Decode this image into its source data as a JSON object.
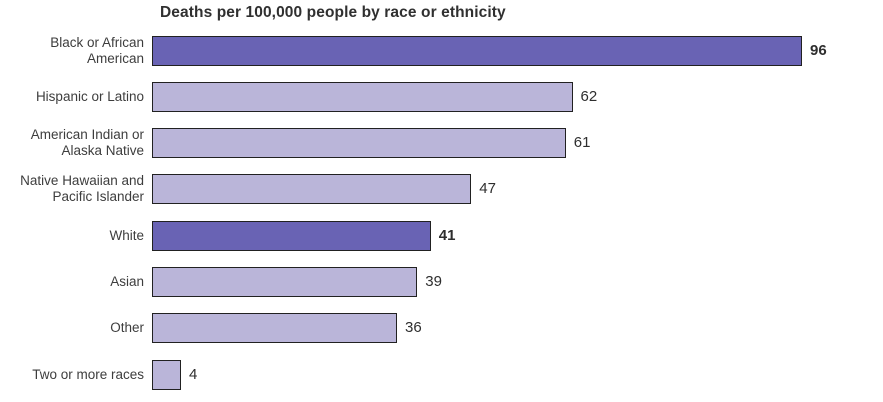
{
  "title": "Deaths per 100,000 people by race or ethnicity",
  "colors": {
    "bar_highlight": "#6963B4",
    "bar_default": "#BAB5D9",
    "bar_border": "#212121",
    "title_text": "#303030",
    "label_text": "#3d3d3d",
    "value_text": "#2e2e2e"
  },
  "chart_data": {
    "type": "bar",
    "orientation": "horizontal",
    "title": "Deaths per 100,000 people by race or ethnicity",
    "xlabel": "",
    "ylabel": "",
    "xlim": [
      0,
      100
    ],
    "grid": false,
    "axis_lines": false,
    "value_labels": "end-of-bar",
    "legend": "none",
    "categories": [
      "Black or African American",
      "Hispanic or Latino",
      "American Indian or Alaska Native",
      "Native Hawaiian and Pacific Islander",
      "White",
      "Asian",
      "Other",
      "Two or more races"
    ],
    "values": [
      96,
      62,
      61,
      47,
      41,
      39,
      36,
      4
    ],
    "rows": [
      {
        "label": "Black or African\nAmerican",
        "value": "96",
        "highlight": true
      },
      {
        "label": "Hispanic or Latino",
        "value": "62",
        "highlight": false
      },
      {
        "label": "American Indian or\nAlaska Native",
        "value": "61",
        "highlight": false
      },
      {
        "label": "Native Hawaiian and\nPacific Islander",
        "value": "47",
        "highlight": false
      },
      {
        "label": "White",
        "value": "41",
        "highlight": true
      },
      {
        "label": "Asian",
        "value": "39",
        "highlight": false
      },
      {
        "label": "Other",
        "value": "36",
        "highlight": false
      },
      {
        "label": "Two or more races",
        "value": "4",
        "highlight": false
      }
    ]
  }
}
